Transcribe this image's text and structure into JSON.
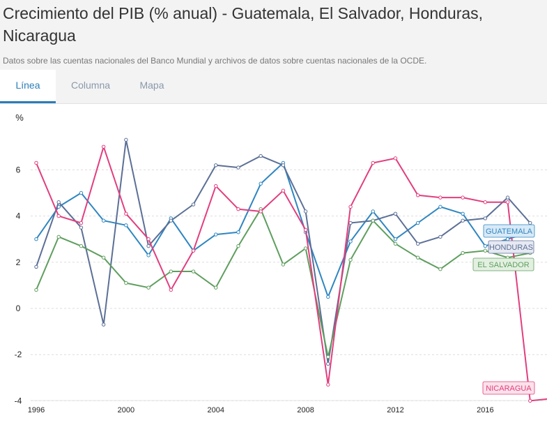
{
  "header": {
    "title": "Crecimiento del PIB (% anual) - Guatemala, El Salvador, Honduras, Nicaragua",
    "subtitle": "Datos sobre las cuentas nacionales del Banco Mundial y archivos de datos sobre cuentas nacionales de la OCDE."
  },
  "tabs": [
    {
      "label": "Línea",
      "active": true
    },
    {
      "label": "Columna",
      "active": false
    },
    {
      "label": "Mapa",
      "active": false
    }
  ],
  "chart_data": {
    "type": "line",
    "ylabel": "%",
    "ylim": [
      -4,
      7.5
    ],
    "yticks": [
      -4,
      -2,
      0,
      2,
      4,
      6
    ],
    "xlim": [
      1996,
      2019
    ],
    "xticks": [
      1996,
      2000,
      2004,
      2008,
      2012,
      2016
    ],
    "grid": true,
    "x": [
      1996,
      1997,
      1998,
      1999,
      2000,
      2001,
      2002,
      2003,
      2004,
      2005,
      2006,
      2007,
      2008,
      2009,
      2010,
      2011,
      2012,
      2013,
      2014,
      2015,
      2016,
      2017,
      2018,
      2019
    ],
    "series": [
      {
        "name": "GUATEMALA",
        "color": "#2e86c1",
        "label_bg": "#d8eaf7",
        "values": [
          3.0,
          4.4,
          5.0,
          3.8,
          3.6,
          2.3,
          3.9,
          2.5,
          3.2,
          3.3,
          5.4,
          6.3,
          3.3,
          0.5,
          2.9,
          4.2,
          3.0,
          3.7,
          4.4,
          4.1,
          2.7,
          3.0,
          3.3,
          null
        ]
      },
      {
        "name": "HONDURAS",
        "color": "#5b6f96",
        "label_bg": "#e6e9f2",
        "values": [
          1.8,
          4.6,
          3.5,
          -0.7,
          7.3,
          2.7,
          3.8,
          4.5,
          6.2,
          6.1,
          6.6,
          6.2,
          4.2,
          -2.4,
          3.7,
          3.8,
          4.1,
          2.8,
          3.1,
          3.8,
          3.9,
          4.8,
          3.7,
          null
        ]
      },
      {
        "name": "EL SALVADOR",
        "color": "#5e9e5e",
        "label_bg": "#e3f0e1",
        "values": [
          0.8,
          3.1,
          2.7,
          2.2,
          1.1,
          0.9,
          1.6,
          1.6,
          0.9,
          2.7,
          4.3,
          1.9,
          2.6,
          -2.1,
          2.1,
          3.8,
          2.8,
          2.2,
          1.7,
          2.4,
          2.5,
          2.2,
          2.4,
          null
        ]
      },
      {
        "name": "NICARAGUA",
        "color": "#e23e7e",
        "label_bg": "#fbe1ea",
        "values": [
          6.3,
          4.0,
          3.7,
          7.0,
          4.1,
          3.0,
          0.8,
          2.5,
          5.3,
          4.3,
          4.2,
          5.1,
          3.4,
          -3.3,
          4.4,
          6.3,
          6.5,
          4.9,
          4.8,
          4.8,
          4.6,
          4.6,
          -4.0,
          -3.9
        ]
      }
    ]
  }
}
